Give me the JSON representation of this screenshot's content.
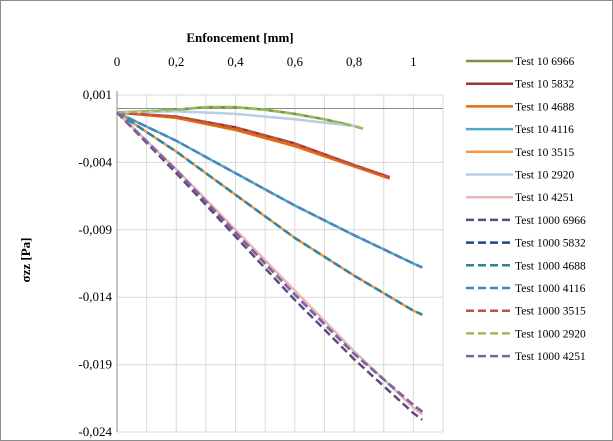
{
  "chart_data": {
    "type": "line",
    "xlabel": "Enfoncement [mm]",
    "ylabel": "σzz [Pa]",
    "x_axis_position": "top",
    "xlim": [
      0,
      1.1
    ],
    "ylim": [
      -0.024,
      0.001
    ],
    "xticks": [
      "0",
      "0,2",
      "0,4",
      "0,6",
      "0,8",
      "1"
    ],
    "yticks": [
      "0,001",
      "-0,004",
      "-0,009",
      "-0,014",
      "-0,019",
      "-0,024"
    ],
    "grid": true,
    "legend_position": "right",
    "series": [
      {
        "name": "Test 10 6966",
        "color": "#77933c",
        "dash": "solid",
        "x": [
          0,
          0.1,
          0.2,
          0.3,
          0.4,
          0.5,
          0.6,
          0.7,
          0.8,
          0.83
        ],
        "y": [
          -0.0003,
          -0.0002,
          -0.0001,
          0.0001,
          0.0001,
          -0.0001,
          -0.0004,
          -0.0008,
          -0.0013,
          -0.0015
        ]
      },
      {
        "name": "Test 10 5832",
        "color": "#953735",
        "dash": "solid",
        "x": [
          0,
          0.2,
          0.4,
          0.6,
          0.8,
          0.92
        ],
        "y": [
          -0.0003,
          -0.0006,
          -0.0014,
          -0.0026,
          -0.0042,
          -0.0051
        ]
      },
      {
        "name": "Test 10 4688",
        "color": "#e46c0a",
        "dash": "solid",
        "x": [
          0,
          0.2,
          0.4,
          0.6,
          0.8,
          0.92
        ],
        "y": [
          -0.0003,
          -0.0007,
          -0.0016,
          -0.0028,
          -0.0043,
          -0.0052
        ]
      },
      {
        "name": "Test 10 4116",
        "color": "#4bacc6",
        "dash": "solid",
        "x": [
          0,
          0.2,
          0.4,
          0.6,
          0.8,
          1.0,
          1.03
        ],
        "y": [
          -0.0003,
          -0.0024,
          -0.0048,
          -0.0072,
          -0.0094,
          -0.0115,
          -0.0118
        ]
      },
      {
        "name": "Test 10 3515",
        "color": "#f79646",
        "dash": "solid",
        "x": [
          0,
          0.2,
          0.4,
          0.6,
          0.8,
          1.0,
          1.03
        ],
        "y": [
          -0.0003,
          -0.0032,
          -0.0064,
          -0.0096,
          -0.0124,
          -0.015,
          -0.0153
        ]
      },
      {
        "name": "Test 10 2920",
        "color": "#b9cde5",
        "dash": "solid",
        "x": [
          0,
          0.2,
          0.4,
          0.6,
          0.8,
          0.83
        ],
        "y": [
          -0.0003,
          -0.0002,
          -0.0004,
          -0.0008,
          -0.0013,
          -0.0015
        ]
      },
      {
        "name": "Test 10 4251",
        "color": "#e6b9b8",
        "dash": "solid",
        "x": [
          0,
          0.2,
          0.4,
          0.6,
          0.8,
          1.0,
          1.03
        ],
        "y": [
          -0.0003,
          -0.0045,
          -0.009,
          -0.0135,
          -0.018,
          -0.0222,
          -0.0227
        ]
      },
      {
        "name": "Test 1000 6966",
        "color": "#604a7b",
        "dash": "dashed",
        "x": [
          0,
          0.2,
          0.4,
          0.6,
          0.8,
          1.0,
          1.03
        ],
        "y": [
          -0.0003,
          -0.0048,
          -0.0095,
          -0.0142,
          -0.0186,
          -0.0226,
          -0.0231
        ]
      },
      {
        "name": "Test 1000 5832",
        "color": "#1f497d",
        "dash": "dashed",
        "x": [
          0,
          0.2,
          0.4,
          0.6,
          0.8,
          1.0,
          1.03
        ],
        "y": [
          -0.0003,
          -0.0046,
          -0.0092,
          -0.0138,
          -0.0182,
          -0.022,
          -0.0225
        ]
      },
      {
        "name": "Test 1000 4688",
        "color": "#31859c",
        "dash": "dashed",
        "x": [
          0,
          0.2,
          0.4,
          0.6,
          0.8,
          1.0,
          1.03
        ],
        "y": [
          -0.0003,
          -0.0032,
          -0.0064,
          -0.0096,
          -0.0124,
          -0.015,
          -0.0153
        ]
      },
      {
        "name": "Test 1000 4116",
        "color": "#4f81bd",
        "dash": "dashed",
        "x": [
          0,
          0.2,
          0.4,
          0.6,
          0.8,
          1.0,
          1.03
        ],
        "y": [
          -0.0003,
          -0.0024,
          -0.0048,
          -0.0072,
          -0.0094,
          -0.0115,
          -0.0118
        ]
      },
      {
        "name": "Test 1000 3515",
        "color": "#c0504d",
        "dash": "dashed",
        "x": [
          0,
          0.2,
          0.4,
          0.6,
          0.8,
          0.92
        ],
        "y": [
          -0.0003,
          -0.0006,
          -0.0014,
          -0.0026,
          -0.0042,
          -0.0051
        ]
      },
      {
        "name": "Test 1000 2920",
        "color": "#9bbb59",
        "dash": "dashed",
        "x": [
          0,
          0.1,
          0.2,
          0.3,
          0.4,
          0.5,
          0.6,
          0.7,
          0.8,
          0.83
        ],
        "y": [
          -0.0003,
          -0.0002,
          -0.0001,
          0.0001,
          0.0001,
          -0.0001,
          -0.0004,
          -0.0008,
          -0.0013,
          -0.0015
        ]
      },
      {
        "name": "Test 1000 4251",
        "color": "#8064a2",
        "dash": "dashed",
        "x": [
          0,
          0.2,
          0.4,
          0.6,
          0.8,
          1.0,
          1.03
        ],
        "y": [
          -0.0003,
          -0.0046,
          -0.0092,
          -0.0138,
          -0.0182,
          -0.022,
          -0.0225
        ]
      }
    ]
  }
}
